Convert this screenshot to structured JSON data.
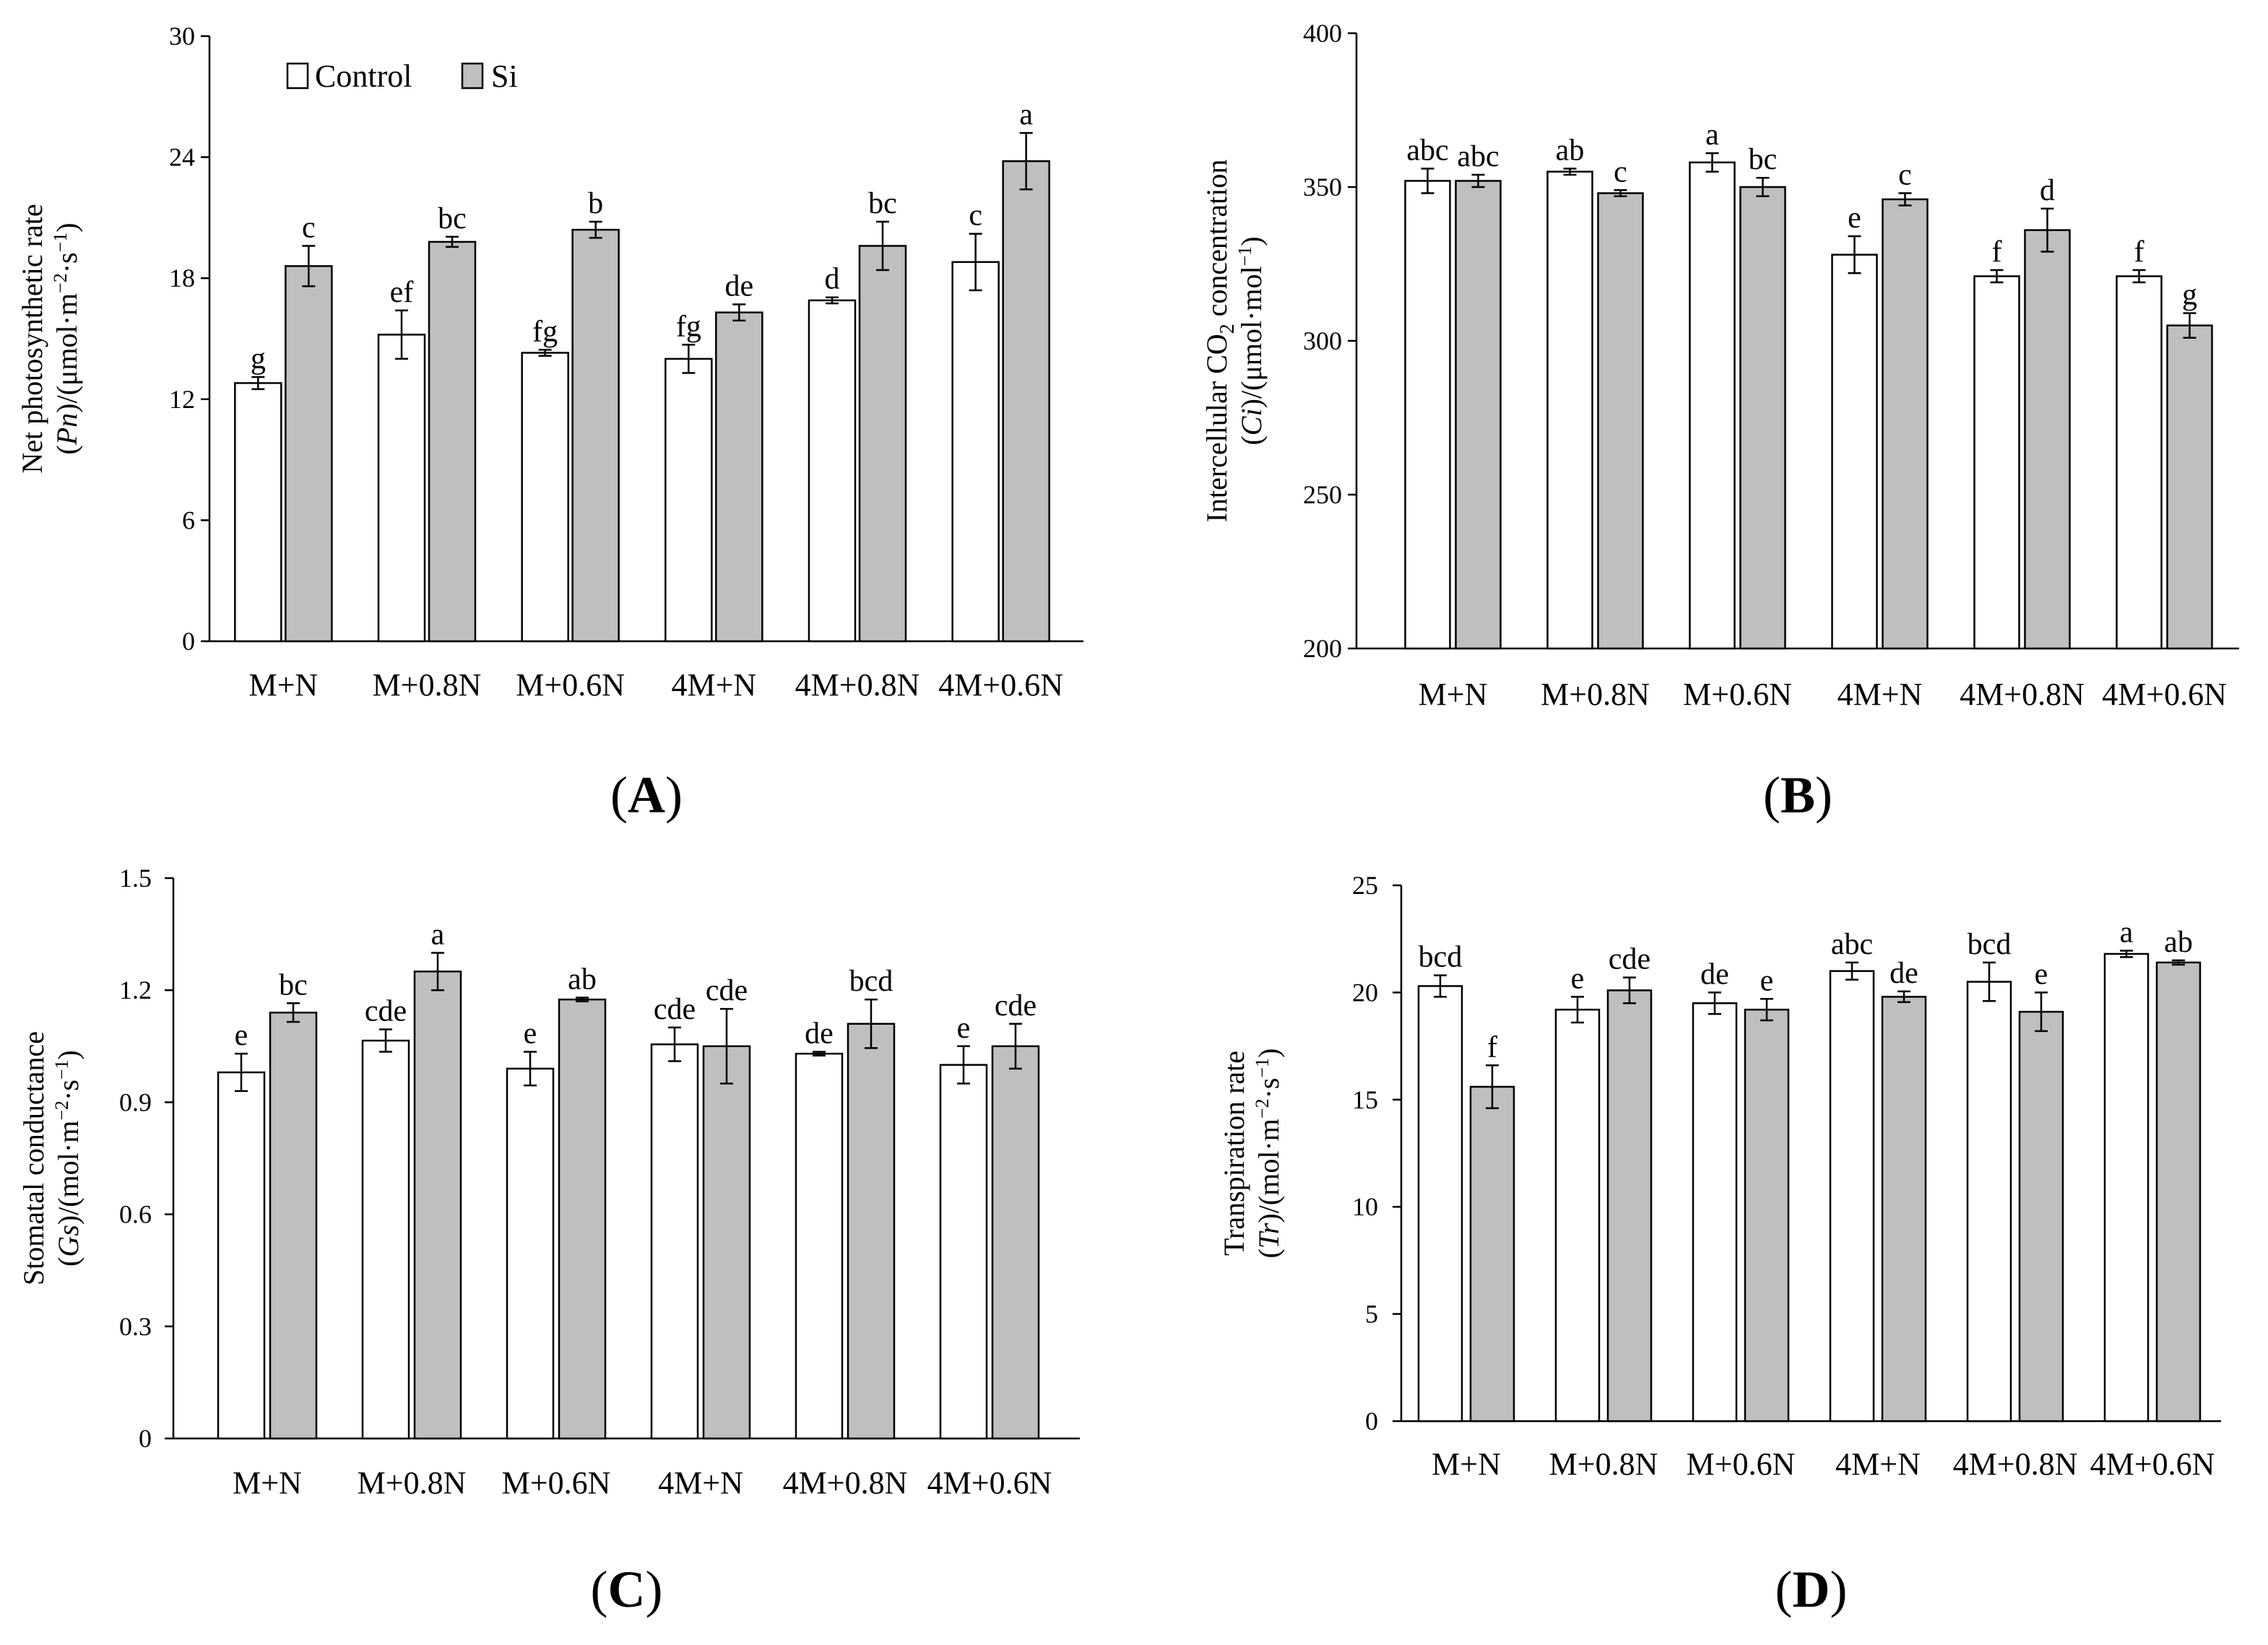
{
  "legend": {
    "control": "Control",
    "si": "Si"
  },
  "colors": {
    "control": "#ffffff",
    "si": "#bfbfbf",
    "stroke": "#000000"
  },
  "chart_data": [
    {
      "id": "A",
      "type": "bar",
      "panel_label": "A",
      "ylabel_line1": "Net photosynthetic rate",
      "ylabel_sym": "Pn",
      "ylabel_unit": "μmol·m",
      "ylabel_exp1": "−2",
      "ylabel_mid": "·s",
      "ylabel_exp2": "−1",
      "ylim": [
        0,
        30
      ],
      "yticks": [
        "0",
        "6",
        "12",
        "18",
        "24",
        "30"
      ],
      "categories": [
        "M+N",
        "M+0.8N",
        "M+0.6N",
        "4M+N",
        "4M+0.8N",
        "4M+0.6N"
      ],
      "series": [
        {
          "name": "Control",
          "values": [
            12.8,
            15.2,
            14.3,
            14.0,
            16.9,
            18.8
          ],
          "errors": [
            0.3,
            1.2,
            0.15,
            0.7,
            0.15,
            1.4
          ],
          "labels": [
            "g",
            "ef",
            "fg",
            "fg",
            "d",
            "c"
          ]
        },
        {
          "name": "Si",
          "values": [
            18.6,
            19.8,
            20.4,
            16.3,
            19.6,
            23.8
          ],
          "errors": [
            1.0,
            0.25,
            0.4,
            0.4,
            1.2,
            1.4
          ],
          "labels": [
            "c",
            "bc",
            "b",
            "de",
            "bc",
            "a"
          ]
        }
      ]
    },
    {
      "id": "B",
      "type": "bar",
      "panel_label": "B",
      "ylabel_line1": "Intercellular CO",
      "ylabel_sub": "2",
      "ylabel_line1b": " concentration",
      "ylabel_sym": "Ci",
      "ylabel_unit": "μmol·mol",
      "ylabel_exp1": "−1",
      "ylim": [
        200,
        400
      ],
      "yticks": [
        "200",
        "250",
        "300",
        "350",
        "400"
      ],
      "categories": [
        "M+N",
        "M+0.8N",
        "M+0.6N",
        "4M+N",
        "4M+0.8N",
        "4M+0.6N"
      ],
      "series": [
        {
          "name": "Control",
          "values": [
            352,
            355,
            358,
            328,
            321,
            321
          ],
          "errors": [
            4,
            1,
            3,
            6,
            2,
            2
          ],
          "labels": [
            "abc",
            "ab",
            "a",
            "e",
            "f",
            "f"
          ]
        },
        {
          "name": "Si",
          "values": [
            352,
            348,
            350,
            346,
            336,
            305
          ],
          "errors": [
            2,
            1,
            3,
            2,
            7,
            4
          ],
          "labels": [
            "abc",
            "c",
            "bc",
            "c",
            "d",
            "g"
          ]
        }
      ]
    },
    {
      "id": "C",
      "type": "bar",
      "panel_label": "C",
      "ylabel_line1": "Stomatal conductance",
      "ylabel_sym": "Gs",
      "ylabel_unit": "mol·m",
      "ylabel_exp1": "−2",
      "ylabel_mid": "·s",
      "ylabel_exp2": "−1",
      "ylim": [
        0,
        1.5
      ],
      "yticks": [
        "0",
        "0.3",
        "0.6",
        "0.9",
        "1.2",
        "1.5"
      ],
      "categories": [
        "M+N",
        "M+0.8N",
        "M+0.6N",
        "4M+N",
        "4M+0.8N",
        "4M+0.6N"
      ],
      "series": [
        {
          "name": "Control",
          "values": [
            0.98,
            1.065,
            0.99,
            1.055,
            1.03,
            1.0
          ],
          "errors": [
            0.05,
            0.03,
            0.045,
            0.045,
            0.005,
            0.05
          ],
          "labels": [
            "e",
            "cde",
            "e",
            "cde",
            "de",
            "e"
          ]
        },
        {
          "name": "Si",
          "values": [
            1.14,
            1.25,
            1.175,
            1.05,
            1.11,
            1.05
          ],
          "errors": [
            0.025,
            0.05,
            0.005,
            0.1,
            0.065,
            0.06
          ],
          "labels": [
            "bc",
            "a",
            "ab",
            "cde",
            "bcd",
            "cde"
          ]
        }
      ]
    },
    {
      "id": "D",
      "type": "bar",
      "panel_label": "D",
      "ylabel_line1": "Transpiration rate",
      "ylabel_sym": "Tr",
      "ylabel_unit": "mol·m",
      "ylabel_exp1": "−2",
      "ylabel_mid": "·s",
      "ylabel_exp2": "−1",
      "ylim": [
        0,
        25
      ],
      "yticks": [
        "0",
        "5",
        "10",
        "15",
        "20",
        "25"
      ],
      "categories": [
        "M+N",
        "M+0.8N",
        "M+0.6N",
        "4M+N",
        "4M+0.8N",
        "4M+0.6N"
      ],
      "series": [
        {
          "name": "Control",
          "values": [
            20.3,
            19.2,
            19.5,
            21.0,
            20.5,
            21.8
          ],
          "errors": [
            0.5,
            0.6,
            0.5,
            0.4,
            0.9,
            0.15
          ],
          "labels": [
            "bcd",
            "e",
            "de",
            "abc",
            "bcd",
            "a"
          ]
        },
        {
          "name": "Si",
          "values": [
            15.6,
            20.1,
            19.2,
            19.8,
            19.1,
            21.4
          ],
          "errors": [
            1.0,
            0.6,
            0.5,
            0.25,
            0.9,
            0.1
          ],
          "labels": [
            "f",
            "cde",
            "e",
            "de",
            "e",
            "ab"
          ]
        }
      ]
    }
  ]
}
